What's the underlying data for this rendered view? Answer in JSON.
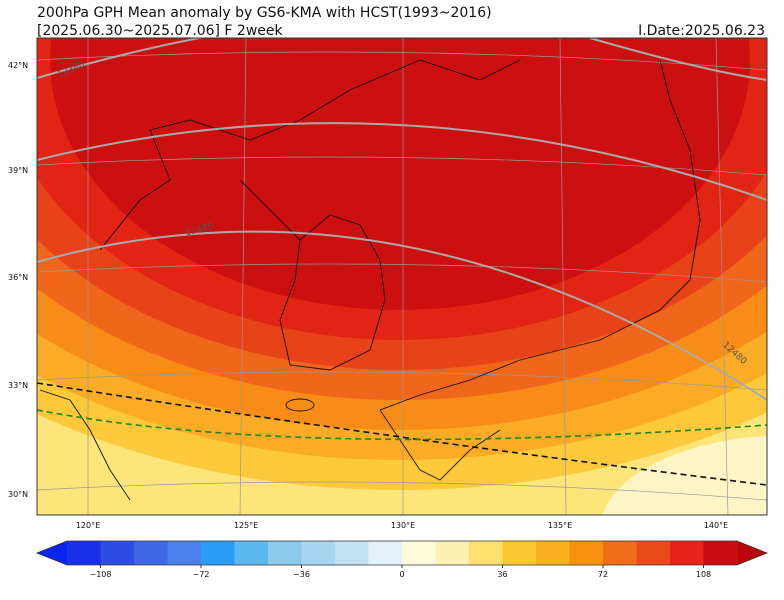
{
  "header": {
    "title": "200hPa GPH Mean anomaly by GS6-KMA with HCST(1993~2016)",
    "period": "[2025.06.30~2025.07.06] F 2week",
    "init_date": "I.Date:2025.06.23"
  },
  "map": {
    "lat_labels": [
      "42°N",
      "39°N",
      "36°N",
      "33°N",
      "30°N"
    ],
    "lon_labels": [
      "120°E",
      "125°E",
      "130°E",
      "135°E",
      "140°E"
    ],
    "contour_labels": [
      "12360",
      "12480",
      "12480"
    ]
  },
  "colorbar": {
    "ticks": [
      "−108",
      "−72",
      "−36",
      "0",
      "36",
      "72",
      "108"
    ]
  }
}
